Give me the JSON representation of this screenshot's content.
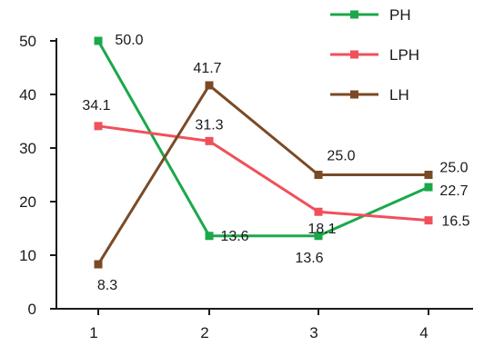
{
  "chart_data": {
    "type": "line",
    "title": "",
    "xlabel": "",
    "ylabel": "",
    "x": [
      1,
      2,
      3,
      4
    ],
    "x_tick_labels": [
      "1",
      "2",
      "3",
      "4"
    ],
    "ylim": [
      0,
      50
    ],
    "y_ticks": [
      0,
      10,
      20,
      30,
      40,
      50
    ],
    "y_tick_labels": [
      "0",
      "10",
      "20",
      "30",
      "40",
      "50"
    ],
    "grid": false,
    "legend_position": "top-right",
    "series": [
      {
        "name": "PH",
        "color": "#1aa84a",
        "values": [
          50.0,
          13.6,
          13.6,
          22.7
        ],
        "labels": [
          "50.0",
          "13.6",
          "13.6",
          "22.7"
        ]
      },
      {
        "name": "LPH",
        "color": "#f0505a",
        "values": [
          34.1,
          31.3,
          18.1,
          16.5
        ],
        "labels": [
          "34.1",
          "31.3",
          "18.1",
          "16.5"
        ]
      },
      {
        "name": "LH",
        "color": "#7a4a26",
        "values": [
          8.3,
          41.7,
          25.0,
          25.0
        ],
        "labels": [
          "8.3",
          "41.7",
          "25.0",
          "25.0"
        ]
      }
    ],
    "axis_color": "#1a1a1a"
  }
}
